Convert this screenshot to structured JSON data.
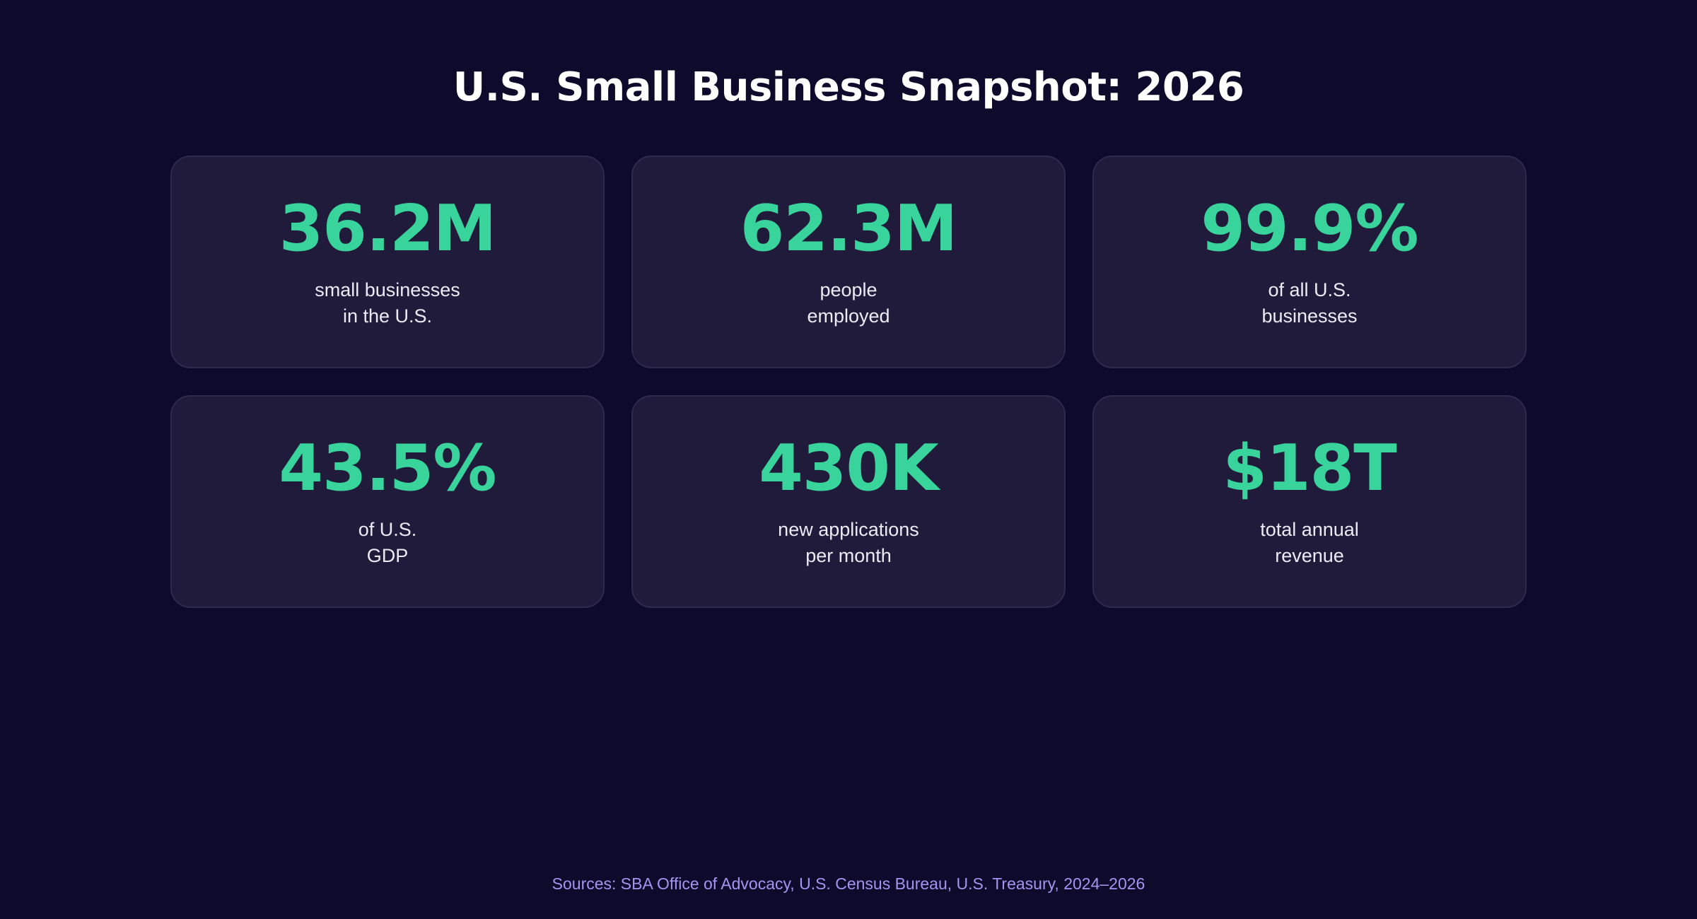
{
  "title": "U.S. Small Business Snapshot: 2026",
  "colors": {
    "background": "#0e0a2c",
    "card": "#201b3b",
    "accent": "#38d49b",
    "sources": "#a694f0"
  },
  "stats": [
    {
      "value": "36.2M",
      "label_line1": "small businesses",
      "label_line2": "in the U.S."
    },
    {
      "value": "62.3M",
      "label_line1": "people",
      "label_line2": "employed"
    },
    {
      "value": "99.9%",
      "label_line1": "of all U.S.",
      "label_line2": "businesses"
    },
    {
      "value": "43.5%",
      "label_line1": "of U.S.",
      "label_line2": "GDP"
    },
    {
      "value": "430K",
      "label_line1": "new applications",
      "label_line2": "per month"
    },
    {
      "value": "$18T",
      "label_line1": "total annual",
      "label_line2": "revenue"
    }
  ],
  "sources": "Sources: SBA Office of Advocacy, U.S. Census Bureau, U.S. Treasury, 2024–2026"
}
